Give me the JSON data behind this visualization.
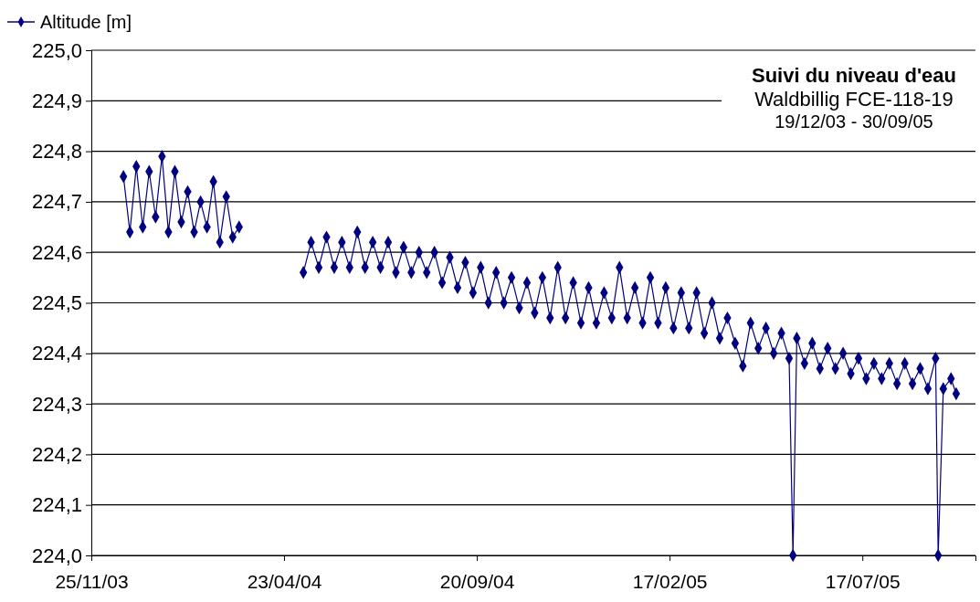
{
  "chart_data": {
    "type": "line",
    "title": "Suivi du niveau d'eau",
    "subtitle": "Waldbillig FCE-118-19",
    "annotations": [
      "19/12/03 - 30/09/05"
    ],
    "legend": "top left",
    "grid": "y",
    "marker": "diamond",
    "line_style": "solid",
    "xlim": [
      "2003-11-25",
      "2005-10-13"
    ],
    "xticks": [
      {
        "value": "2003-11-25",
        "label": "25/11/03"
      },
      {
        "value": "2004-04-23",
        "label": "23/04/04"
      },
      {
        "value": "2004-09-20",
        "label": "20/09/04"
      },
      {
        "value": "2005-02-17",
        "label": "17/02/05"
      },
      {
        "value": "2005-07-17",
        "label": "17/07/05"
      }
    ],
    "ylim": [
      224.0,
      225.0
    ],
    "yticks": [
      {
        "value": 224.0,
        "label": "224,0"
      },
      {
        "value": 224.1,
        "label": "224,1"
      },
      {
        "value": 224.2,
        "label": "224,2"
      },
      {
        "value": 224.3,
        "label": "224,3"
      },
      {
        "value": 224.4,
        "label": "224,4"
      },
      {
        "value": 224.5,
        "label": "224,5"
      },
      {
        "value": 224.6,
        "label": "224,6"
      },
      {
        "value": 224.7,
        "label": "224,7"
      },
      {
        "value": 224.8,
        "label": "224,8"
      },
      {
        "value": 224.9,
        "label": "224,9"
      },
      {
        "value": 225.0,
        "label": "225,0"
      }
    ],
    "series": [
      {
        "name": "Altitude [m]",
        "color": "#000080",
        "x": [
          "2003-12-20",
          "2003-12-25",
          "2003-12-30",
          "2004-01-04",
          "2004-01-09",
          "2004-01-14",
          "2004-01-19",
          "2004-01-24",
          "2004-01-29",
          "2004-02-03",
          "2004-02-08",
          "2004-02-13",
          "2004-02-18",
          "2004-02-23",
          "2004-02-28",
          "2004-03-04",
          "2004-03-09",
          "2004-03-14",
          "2004-03-19",
          "2004-04-15",
          "2004-05-08",
          "2004-05-14",
          "2004-05-20",
          "2004-05-26",
          "2004-06-01",
          "2004-06-07",
          "2004-06-13",
          "2004-06-19",
          "2004-06-25",
          "2004-07-01",
          "2004-07-07",
          "2004-07-13",
          "2004-07-19",
          "2004-07-25",
          "2004-07-31",
          "2004-08-06",
          "2004-08-12",
          "2004-08-18",
          "2004-08-24",
          "2004-08-30",
          "2004-09-05",
          "2004-09-11",
          "2004-09-17",
          "2004-09-23",
          "2004-09-29",
          "2004-10-05",
          "2004-10-11",
          "2004-10-17",
          "2004-10-23",
          "2004-10-29",
          "2004-11-04",
          "2004-11-10",
          "2004-11-16",
          "2004-11-22",
          "2004-11-28",
          "2004-12-04",
          "2004-12-10",
          "2004-12-16",
          "2004-12-22",
          "2004-12-28",
          "2005-01-03",
          "2005-01-09",
          "2005-01-15",
          "2005-01-21",
          "2005-01-27",
          "2005-02-02",
          "2005-02-08",
          "2005-02-14",
          "2005-02-20",
          "2005-02-26",
          "2005-03-04",
          "2005-03-10",
          "2005-03-16",
          "2005-03-22",
          "2005-03-28",
          "2005-04-03",
          "2005-04-09",
          "2005-04-15",
          "2005-04-21",
          "2005-04-27",
          "2005-05-03",
          "2005-05-09",
          "2005-05-15",
          "2005-05-21",
          "2005-05-24",
          "2005-05-27",
          "2005-06-02",
          "2005-06-08",
          "2005-06-14",
          "2005-06-20",
          "2005-06-26",
          "2005-07-02",
          "2005-07-08",
          "2005-07-14",
          "2005-07-20",
          "2005-07-26",
          "2005-08-01",
          "2005-08-07",
          "2005-08-13",
          "2005-08-19",
          "2005-08-25",
          "2005-08-31",
          "2005-09-06",
          "2005-09-12",
          "2005-09-14",
          "2005-09-18",
          "2005-09-24",
          "2005-09-28"
        ],
        "values": [
          224.75,
          224.64,
          224.77,
          224.65,
          224.76,
          224.67,
          224.79,
          224.64,
          224.76,
          224.66,
          224.72,
          224.64,
          224.7,
          224.65,
          224.74,
          224.62,
          224.71,
          224.63,
          224.65,
          null,
          224.56,
          224.62,
          224.57,
          224.63,
          224.57,
          224.62,
          224.57,
          224.64,
          224.57,
          224.62,
          224.57,
          224.62,
          224.56,
          224.61,
          224.56,
          224.6,
          224.56,
          224.6,
          224.54,
          224.59,
          224.53,
          224.58,
          224.52,
          224.57,
          224.5,
          224.56,
          224.5,
          224.55,
          224.49,
          224.54,
          224.48,
          224.55,
          224.47,
          224.57,
          224.47,
          224.54,
          224.46,
          224.53,
          224.46,
          224.52,
          224.47,
          224.57,
          224.47,
          224.53,
          224.46,
          224.55,
          224.46,
          224.53,
          224.45,
          224.52,
          224.45,
          224.52,
          224.44,
          224.5,
          224.43,
          224.47,
          224.42,
          224.375,
          224.46,
          224.41,
          224.45,
          224.4,
          224.44,
          224.39,
          224.0,
          224.43,
          224.38,
          224.42,
          224.37,
          224.41,
          224.37,
          224.4,
          224.36,
          224.39,
          224.35,
          224.38,
          224.35,
          224.38,
          224.34,
          224.38,
          224.34,
          224.37,
          224.33,
          224.39,
          224.0,
          224.33,
          224.35,
          224.32
        ]
      }
    ]
  }
}
